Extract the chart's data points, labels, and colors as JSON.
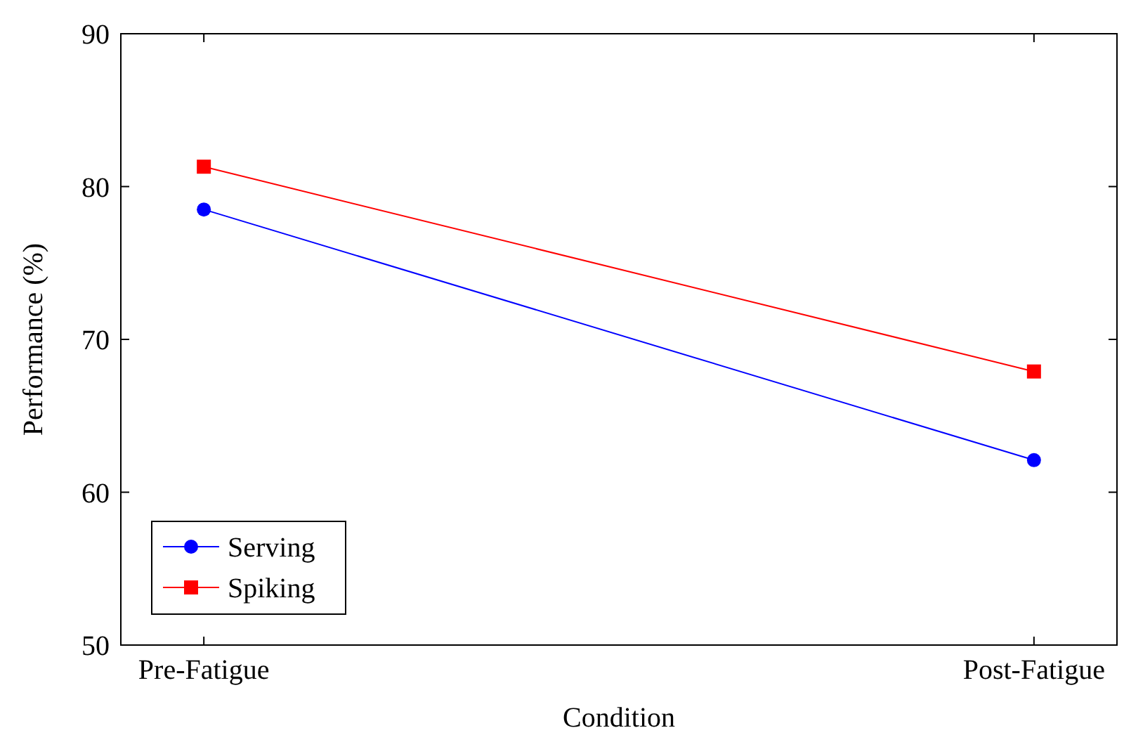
{
  "chart_data": {
    "type": "line",
    "xlabel": "Condition",
    "ylabel": "Performance (%)",
    "categories": [
      "Pre-Fatigue",
      "Post-Fatigue"
    ],
    "series": [
      {
        "name": "Serving",
        "color": "#0000ff",
        "marker": "circle",
        "values": [
          78.5,
          62.1
        ]
      },
      {
        "name": "Spiking",
        "color": "#ff0000",
        "marker": "square",
        "values": [
          81.3,
          67.9
        ]
      }
    ],
    "ylim": [
      50,
      90
    ],
    "yticks": [
      50,
      60,
      70,
      80,
      90
    ],
    "grid": false,
    "legend": "bottom left"
  }
}
